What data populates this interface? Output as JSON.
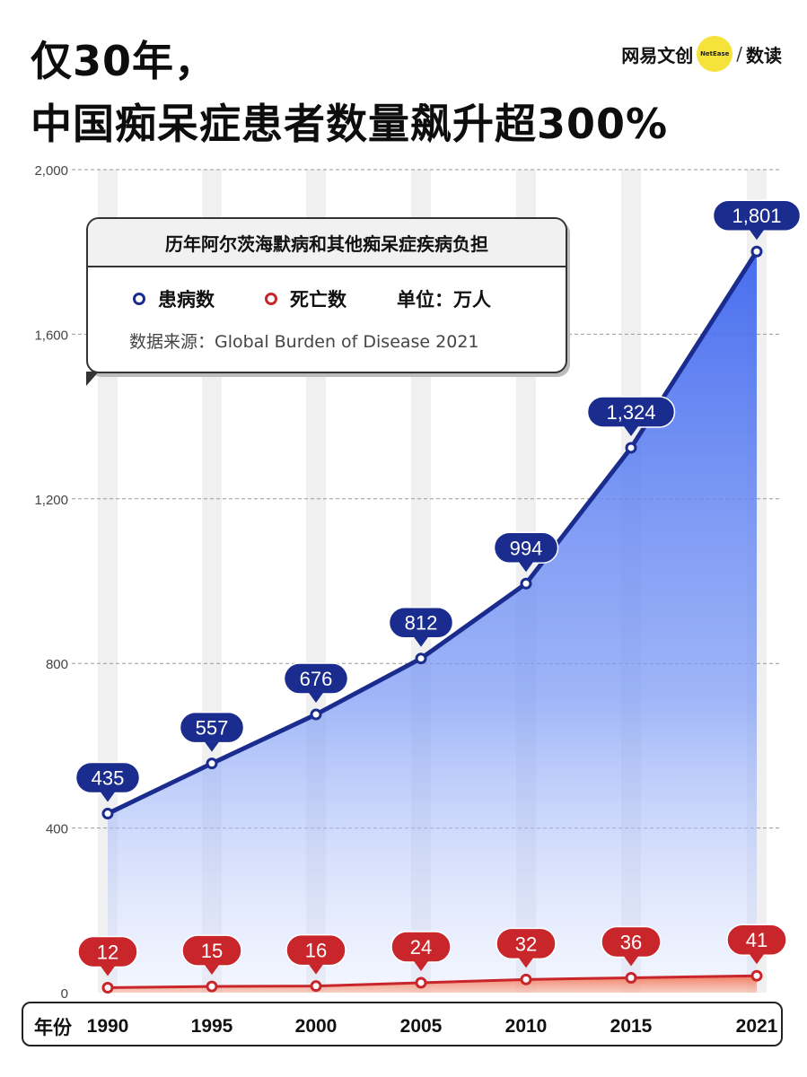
{
  "header": {
    "title_line1": "仅30年，",
    "title_line2": "中国痴呆症患者数量飙升超300%"
  },
  "brand": {
    "name": "网易文创",
    "badge": "NetEase",
    "separator": "/",
    "section": "数读",
    "badge_color": "#f5e23a"
  },
  "legend": {
    "title": "历年阿尔茨海默病和其他痴呆症疾病负担",
    "series_patients": "患病数",
    "series_deaths": "死亡数",
    "unit": "单位：万人",
    "source": "数据来源：Global Burden of Disease 2021"
  },
  "x_axis_prefix": "年份",
  "chart_data": {
    "type": "area",
    "x": [
      1990,
      1995,
      2000,
      2005,
      2010,
      2015,
      2021
    ],
    "x_tick_labels": [
      "1990",
      "1995",
      "2000",
      "2005",
      "2010",
      "2015",
      "2021"
    ],
    "y_tick_labels": [
      "0",
      "400",
      "800",
      "1,200",
      "1,600",
      "2,000"
    ],
    "y_ticks": [
      0,
      400,
      800,
      1200,
      1600,
      2000
    ],
    "ylim": [
      0,
      2000
    ],
    "grid": true,
    "series": [
      {
        "name": "患病数",
        "color": "#1a2d8f",
        "fill": "#5b82f0",
        "values": [
          435,
          557,
          676,
          812,
          994,
          1324,
          1801
        ],
        "labels": [
          "435",
          "557",
          "676",
          "812",
          "994",
          "1,324",
          "1,801"
        ]
      },
      {
        "name": "死亡数",
        "color": "#c8262a",
        "fill": "#f08a6a",
        "values": [
          12,
          15,
          16,
          24,
          32,
          36,
          41
        ],
        "labels": [
          "12",
          "15",
          "16",
          "24",
          "32",
          "36",
          "41"
        ]
      }
    ]
  }
}
